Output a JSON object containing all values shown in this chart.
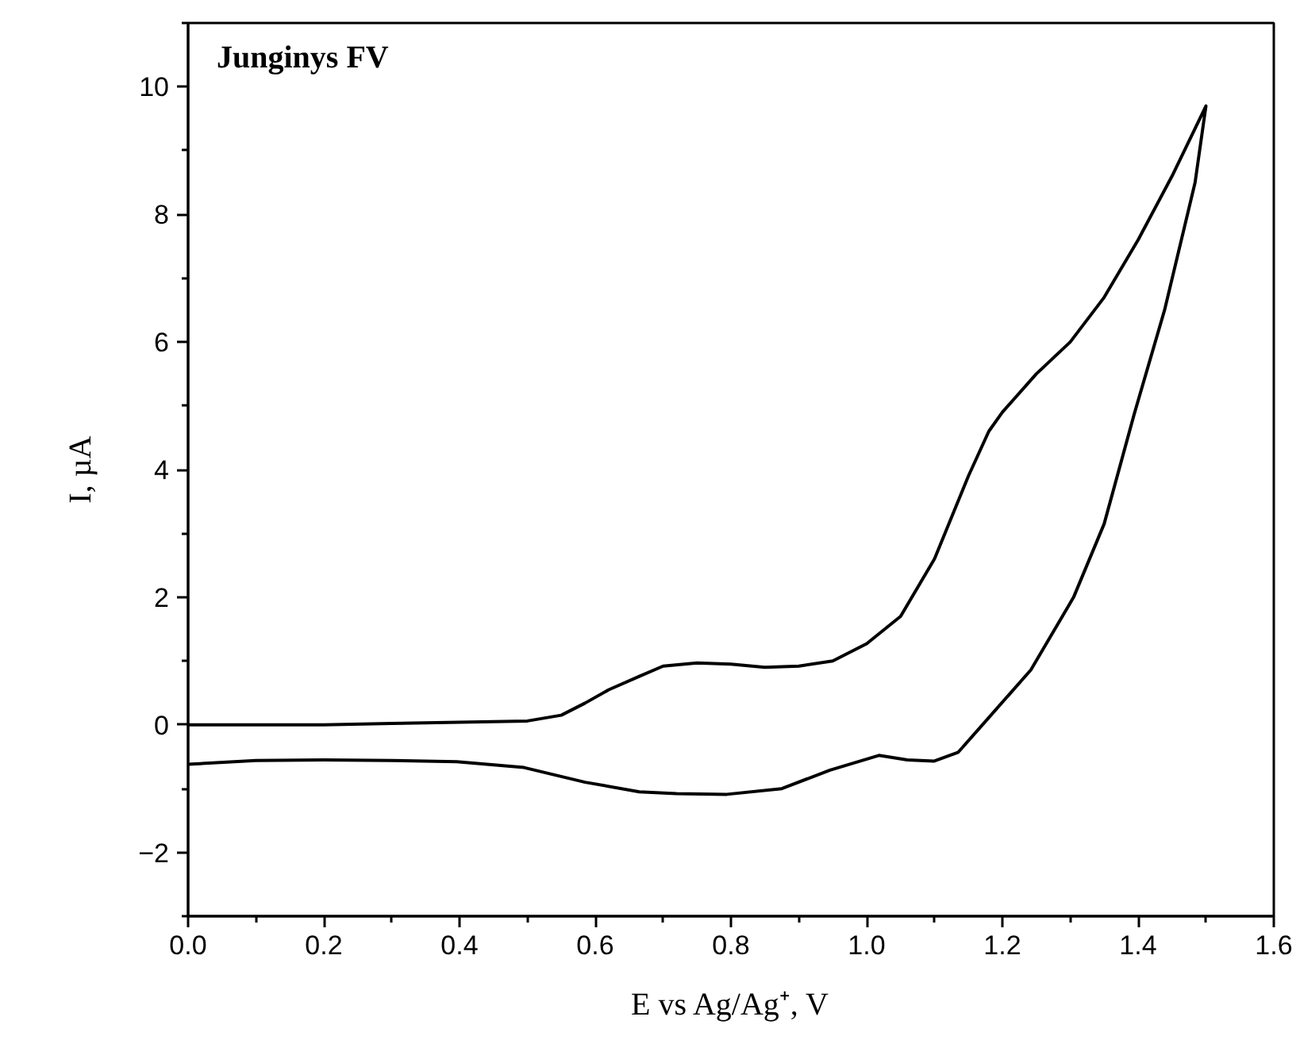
{
  "chart_data": {
    "type": "line",
    "xlabel": "E vs Ag/Ag⁺, V",
    "ylabel": "I, µA",
    "annotations": [
      "Junginys FV"
    ],
    "xlim": [
      0,
      1.6
    ],
    "ylim": [
      -3,
      11
    ],
    "xticks": [
      {
        "value": 0,
        "label": "0.0"
      },
      0.2,
      0.4,
      0.6,
      0.8,
      {
        "value": 1,
        "label": "1.0"
      },
      1.2,
      1.4,
      1.6
    ],
    "yticks": [
      -2,
      0,
      2,
      4,
      6,
      8,
      10
    ],
    "grid": false,
    "marker": "none",
    "line_style": "solid",
    "series": [
      {
        "color": "#000000",
        "x": [
          0,
          0.1,
          0.2,
          0.3,
          0.4,
          0.5,
          0.55,
          0.585,
          0.62,
          0.665,
          0.7,
          0.75,
          0.8,
          0.85,
          0.9,
          0.95,
          1.0,
          1.05,
          1.1,
          1.15,
          1.18,
          1.2,
          1.25,
          1.3,
          1.35,
          1.4,
          1.45,
          1.5,
          1.484,
          1.439,
          1.394,
          1.35,
          1.305,
          1.242,
          1.179,
          1.135,
          1.099,
          1.06,
          1.018,
          0.946,
          0.875,
          0.794,
          0.72,
          0.665,
          0.585,
          0.495,
          0.396,
          0.3,
          0.2,
          0.1,
          0
        ],
        "values": [
          0,
          0,
          0,
          0.02,
          0.04,
          0.06,
          0.15,
          0.34,
          0.55,
          0.76,
          0.92,
          0.97,
          0.95,
          0.9,
          0.92,
          1.0,
          1.27,
          1.7,
          2.6,
          3.9,
          4.6,
          4.9,
          5.5,
          6.0,
          6.7,
          7.6,
          8.6,
          9.7,
          8.5,
          6.5,
          4.86,
          3.15,
          2.0,
          0.86,
          0.1,
          -0.43,
          -0.57,
          -0.55,
          -0.48,
          -0.71,
          -1.0,
          -1.09,
          -1.08,
          -1.05,
          -0.9,
          -0.67,
          -0.58,
          -0.56,
          -0.55,
          -0.56,
          -0.62
        ]
      }
    ]
  }
}
